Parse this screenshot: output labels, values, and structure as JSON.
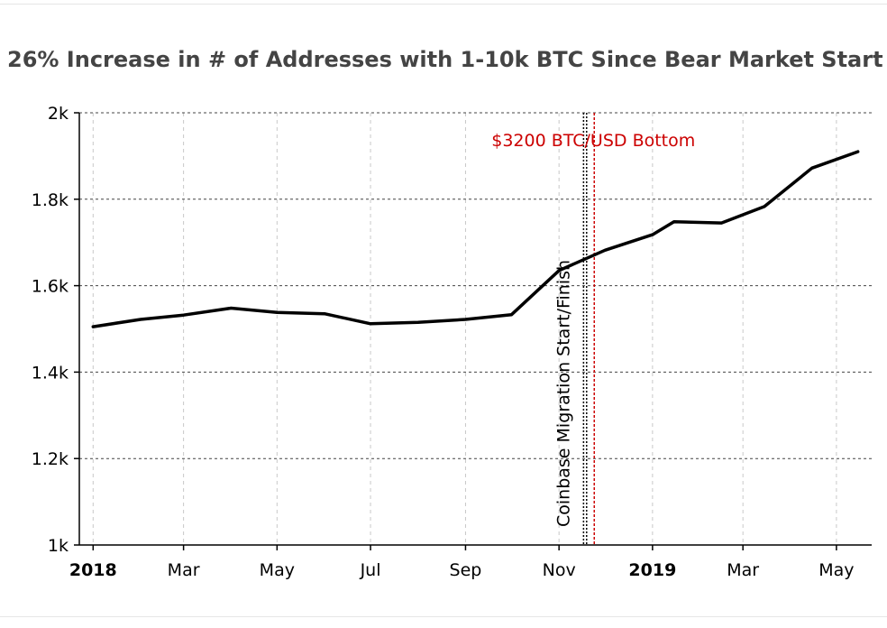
{
  "chart_data": {
    "type": "line",
    "title": "26% Increase in # of Addresses with 1-10k BTC Since Bear Market Start",
    "xlabel": "",
    "ylabel": "",
    "ylim": [
      1000,
      2000
    ],
    "y_ticks": [
      {
        "value": 1000,
        "label": "1k"
      },
      {
        "value": 1200,
        "label": "1.2k"
      },
      {
        "value": 1400,
        "label": "1.4k"
      },
      {
        "value": 1600,
        "label": "1.6k"
      },
      {
        "value": 1800,
        "label": "1.8k"
      },
      {
        "value": 2000,
        "label": "2k"
      }
    ],
    "xlim": [
      "2017-12-23",
      "2019-05-24"
    ],
    "x_ticks": [
      {
        "date": "2018-01-01",
        "label": "2018",
        "bold": true
      },
      {
        "date": "2018-03-01",
        "label": "Mar",
        "bold": false
      },
      {
        "date": "2018-05-01",
        "label": "May",
        "bold": false
      },
      {
        "date": "2018-07-01",
        "label": "Jul",
        "bold": false
      },
      {
        "date": "2018-09-01",
        "label": "Sep",
        "bold": false
      },
      {
        "date": "2018-11-01",
        "label": "Nov",
        "bold": false
      },
      {
        "date": "2019-01-01",
        "label": "2019",
        "bold": true
      },
      {
        "date": "2019-03-01",
        "label": "Mar",
        "bold": false
      },
      {
        "date": "2019-05-01",
        "label": "May",
        "bold": false
      }
    ],
    "grid": true,
    "series": [
      {
        "color": "#000000",
        "points": [
          {
            "x": "2018-01-01",
            "y": 1505
          },
          {
            "x": "2018-02-01",
            "y": 1522
          },
          {
            "x": "2018-03-01",
            "y": 1532
          },
          {
            "x": "2018-04-01",
            "y": 1548
          },
          {
            "x": "2018-05-01",
            "y": 1538
          },
          {
            "x": "2018-06-01",
            "y": 1535
          },
          {
            "x": "2018-07-01",
            "y": 1512
          },
          {
            "x": "2018-08-01",
            "y": 1515
          },
          {
            "x": "2018-09-01",
            "y": 1522
          },
          {
            "x": "2018-10-01",
            "y": 1533
          },
          {
            "x": "2018-11-01",
            "y": 1635
          },
          {
            "x": "2018-12-01",
            "y": 1682
          },
          {
            "x": "2019-01-01",
            "y": 1718
          },
          {
            "x": "2019-01-15",
            "y": 1748
          },
          {
            "x": "2019-02-15",
            "y": 1745
          },
          {
            "x": "2019-03-15",
            "y": 1783
          },
          {
            "x": "2019-04-15",
            "y": 1872
          },
          {
            "x": "2019-05-15",
            "y": 1910
          }
        ]
      }
    ],
    "annotations": [
      {
        "x": "2018-11-17",
        "text": "Coinbase Migration Start/Finish",
        "color": "#000000",
        "style": "dotted"
      },
      {
        "x": "2018-11-19",
        "text": "",
        "color": "#000000",
        "style": "dotted"
      },
      {
        "x": "2018-11-24",
        "text": "$3200 BTC/USD Bottom",
        "color": "#cc0000",
        "style": "dashed"
      }
    ]
  }
}
